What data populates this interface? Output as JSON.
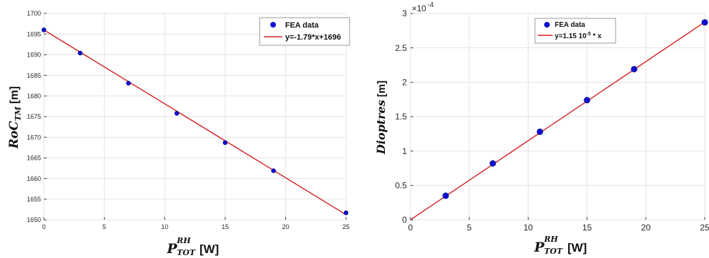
{
  "chart_data": [
    {
      "type": "line",
      "title": "",
      "xlabel": {
        "symbol": "P",
        "sup": "RH",
        "sub": "TOT",
        "unit": "[W]"
      },
      "ylabel": {
        "symbol": "RoC",
        "sub": "TM",
        "unit": "[m]"
      },
      "xlim": [
        0,
        25
      ],
      "ylim": [
        1650,
        1700
      ],
      "xticks": [
        0,
        5,
        10,
        15,
        20,
        25
      ],
      "xtick_labels": [
        "0",
        "5",
        "10",
        "15",
        "20",
        "25"
      ],
      "yticks": [
        1650,
        1655,
        1660,
        1665,
        1670,
        1675,
        1680,
        1685,
        1690,
        1695,
        1700
      ],
      "ytick_labels": [
        "1650",
        "1655",
        "1660",
        "1665",
        "1670",
        "1675",
        "1680",
        "1685",
        "1690",
        "1695",
        "1700"
      ],
      "grid": true,
      "legend_position": "top-right",
      "series": [
        {
          "name": "FEA data",
          "kind": "scatter",
          "color": "#1010d0",
          "x": [
            0,
            3,
            7,
            11,
            15,
            19,
            25
          ],
          "y": [
            1696,
            1690.4,
            1683.1,
            1675.8,
            1668.7,
            1661.9,
            1651.7
          ]
        },
        {
          "name": "y=-1.79*x+1696",
          "kind": "line",
          "color": "#d42020",
          "x": [
            0,
            25
          ],
          "y": [
            1696,
            1651.25
          ]
        }
      ]
    },
    {
      "type": "line",
      "title": "",
      "xlabel": {
        "symbol": "P",
        "sup": "RH",
        "sub": "TOT",
        "unit": "[W]"
      },
      "ylabel": {
        "symbol": "Dioptres",
        "unit": "[m]"
      },
      "y_exponent": {
        "base": "×10",
        "power": "-4"
      },
      "xlim": [
        0,
        25
      ],
      "ylim": [
        0,
        3
      ],
      "xticks": [
        0,
        5,
        10,
        15,
        20,
        25
      ],
      "xtick_labels": [
        "0",
        "5",
        "10",
        "15",
        "20",
        "25"
      ],
      "yticks": [
        0,
        0.5,
        1,
        1.5,
        2,
        2.5,
        3
      ],
      "ytick_labels": [
        "0",
        "0.5",
        "1",
        "1.5",
        "2",
        "2.5",
        "3"
      ],
      "grid": true,
      "legend_position": "top-center",
      "series": [
        {
          "name": "FEA data",
          "kind": "scatter",
          "color": "#1010d0",
          "x": [
            3,
            7,
            11,
            15,
            19,
            25
          ],
          "y": [
            0.35,
            0.82,
            1.28,
            1.74,
            2.19,
            2.87
          ]
        },
        {
          "name": "y=1.15 10",
          "name_sup": "-5",
          "name_tail": " * x",
          "kind": "line",
          "color": "#d42020",
          "x": [
            0,
            25
          ],
          "y": [
            0,
            2.875
          ]
        }
      ]
    }
  ]
}
